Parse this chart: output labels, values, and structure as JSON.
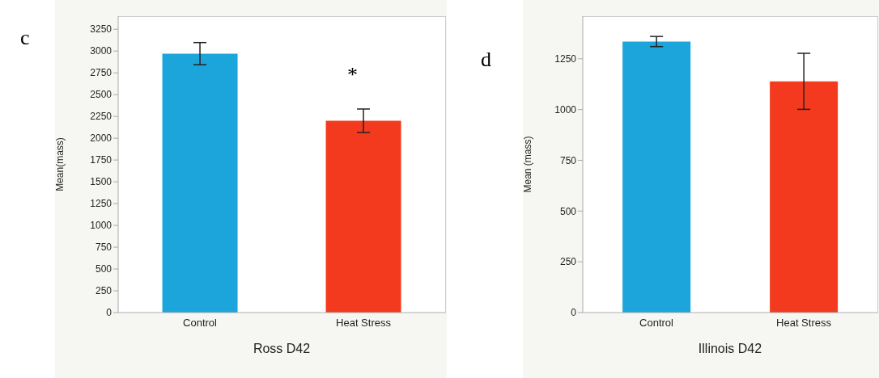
{
  "chart_data": [
    {
      "type": "bar",
      "title": "c",
      "xlabel": "Ross D42",
      "ylabel": "Mean(mass)",
      "categories": [
        "Control",
        "Heat Stress"
      ],
      "values": [
        2970,
        2200
      ],
      "errors": [
        127,
        135
      ],
      "colors": [
        "#1ba5db",
        "#f33a1e"
      ],
      "ylim": [
        0,
        3400
      ],
      "yticks": [
        0,
        250,
        500,
        750,
        1000,
        1250,
        1500,
        1750,
        2000,
        2250,
        2500,
        2750,
        3000,
        3250
      ],
      "annotations": [
        "*"
      ]
    },
    {
      "type": "bar",
      "title": "d",
      "xlabel": "Illinois D42",
      "ylabel": "Mean (mass)",
      "categories": [
        "Control",
        "Heat Stress"
      ],
      "values": [
        1335,
        1139
      ],
      "errors": [
        25,
        138
      ],
      "colors": [
        "#1ba5db",
        "#f33a1e"
      ],
      "ylim": [
        0,
        1460
      ],
      "yticks": [
        0,
        250,
        500,
        750,
        1000,
        1250
      ]
    }
  ]
}
